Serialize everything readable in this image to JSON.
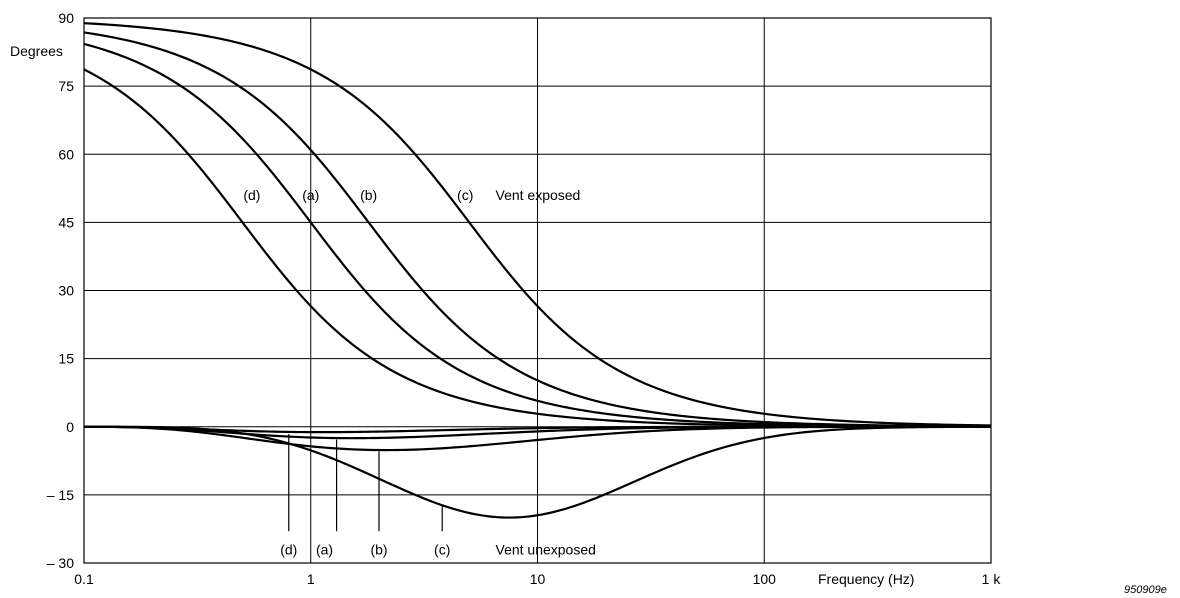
{
  "chart_data": {
    "type": "line",
    "title": "",
    "xlabel": "Frequency (Hz)",
    "ylabel": "Degrees",
    "x_scale": "log",
    "xlim": [
      0.1,
      1000
    ],
    "ylim": [
      -30,
      90
    ],
    "x_ticks": [
      {
        "value": 0.1,
        "label": "0.1"
      },
      {
        "value": 1,
        "label": "1"
      },
      {
        "value": 10,
        "label": "10"
      },
      {
        "value": 100,
        "label": "100"
      },
      {
        "value": 1000,
        "label": "1 k"
      }
    ],
    "y_ticks": [
      {
        "value": 90,
        "label": "90"
      },
      {
        "value": 75,
        "label": "75"
      },
      {
        "value": 60,
        "label": "60"
      },
      {
        "value": 45,
        "label": "45"
      },
      {
        "value": 30,
        "label": "30"
      },
      {
        "value": 15,
        "label": "15"
      },
      {
        "value": 0,
        "label": "0"
      },
      {
        "value": -15,
        "label": "– 15"
      },
      {
        "value": -30,
        "label": "– 30"
      }
    ],
    "grid": true,
    "groups": [
      {
        "label": "Vent exposed",
        "label_at": {
          "x": 10,
          "y": 51
        }
      },
      {
        "label": "Vent unexposed",
        "label_at": {
          "x": 10,
          "y": -27
        }
      }
    ],
    "series": [
      {
        "name": "(d)",
        "group": "Vent exposed",
        "corner_hz": 0.5,
        "x": [
          0.1,
          0.2,
          0.3,
          0.5,
          0.7,
          1,
          2,
          3,
          5,
          10,
          20,
          50,
          100,
          300,
          1000
        ],
        "y": [
          78.7,
          68.2,
          59.0,
          45.0,
          35.5,
          26.6,
          14.0,
          9.5,
          5.7,
          2.9,
          1.4,
          0.6,
          0.3,
          0.1,
          0.0
        ],
        "label_at": {
          "x": 0.55,
          "y": 51
        },
        "label": "(d)"
      },
      {
        "name": "(a)",
        "group": "Vent exposed",
        "corner_hz": 1.0,
        "x": [
          0.1,
          0.2,
          0.3,
          0.5,
          0.7,
          1,
          2,
          3,
          5,
          10,
          20,
          50,
          100,
          300,
          1000
        ],
        "y": [
          84.3,
          78.7,
          73.3,
          63.4,
          55.0,
          45.0,
          26.6,
          18.4,
          11.3,
          5.7,
          2.9,
          1.1,
          0.6,
          0.2,
          0.1
        ],
        "label_at": {
          "x": 1.0,
          "y": 51
        },
        "label": "(a)"
      },
      {
        "name": "(b)",
        "group": "Vent exposed",
        "corner_hz": 1.8,
        "x": [
          0.1,
          0.2,
          0.3,
          0.5,
          0.7,
          1,
          2,
          3,
          5,
          10,
          20,
          50,
          100,
          300,
          1000
        ],
        "y": [
          86.8,
          83.7,
          80.5,
          74.5,
          68.7,
          60.9,
          42.0,
          31.0,
          19.8,
          10.2,
          5.1,
          2.1,
          1.0,
          0.3,
          0.1
        ],
        "label_at": {
          "x": 1.8,
          "y": 51
        },
        "label": "(b)"
      },
      {
        "name": "(c)",
        "group": "Vent exposed",
        "corner_hz": 5.0,
        "x": [
          0.1,
          0.2,
          0.3,
          0.5,
          0.7,
          1,
          2,
          3,
          5,
          10,
          20,
          50,
          100,
          300,
          1000
        ],
        "y": [
          88.9,
          87.7,
          86.6,
          84.3,
          82.0,
          78.7,
          68.2,
          59.0,
          45.0,
          26.6,
          14.0,
          5.7,
          2.9,
          1.0,
          0.3
        ],
        "label_at": {
          "x": 4.8,
          "y": 51
        },
        "label": "(c)"
      },
      {
        "name": "(d)",
        "group": "Vent unexposed",
        "min_hz": 0.8,
        "min_deg": -1.3,
        "x": [
          0.1,
          0.2,
          0.3,
          0.5,
          0.8,
          1.5,
          3,
          6,
          10,
          30,
          100,
          1000
        ],
        "y": [
          0,
          -0.3,
          -0.6,
          -1.0,
          -1.3,
          -1.0,
          -0.6,
          -0.3,
          -0.2,
          0,
          0,
          0
        ],
        "leader": {
          "x": 0.8,
          "y_from": -1.6,
          "y_to": -23
        },
        "label_at": {
          "x": 0.8,
          "y": -27
        },
        "label": "(d)"
      },
      {
        "name": "(a)",
        "group": "Vent unexposed",
        "min_hz": 1.3,
        "min_deg": -2.6,
        "x": [
          0.1,
          0.2,
          0.3,
          0.5,
          0.8,
          1.3,
          2,
          3,
          5,
          10,
          30,
          100,
          1000
        ],
        "y": [
          0,
          -0.4,
          -0.8,
          -1.5,
          -2.2,
          -2.6,
          -2.4,
          -2.0,
          -1.3,
          -0.6,
          -0.2,
          0,
          0
        ],
        "leader": {
          "x": 1.3,
          "y_from": -2.8,
          "y_to": -23
        },
        "label_at": {
          "x": 1.15,
          "y": -27
        },
        "label": "(a)"
      },
      {
        "name": "(b)",
        "group": "Vent unexposed",
        "min_hz": 2.0,
        "min_deg": -5.2,
        "x": [
          0.1,
          0.2,
          0.3,
          0.5,
          0.8,
          1.3,
          2,
          3,
          5,
          10,
          20,
          50,
          100,
          300,
          1000
        ],
        "y": [
          0,
          -0.5,
          -1.0,
          -2.0,
          -3.2,
          -4.5,
          -5.2,
          -4.8,
          -3.8,
          -2.2,
          -1.3,
          -0.5,
          -0.3,
          -0.1,
          0
        ],
        "leader": {
          "x": 2.0,
          "y_from": -5.4,
          "y_to": -23
        },
        "label_at": {
          "x": 2.0,
          "y": -27
        },
        "label": "(b)"
      },
      {
        "name": "(c)",
        "group": "Vent unexposed",
        "min_hz": 7.5,
        "min_deg": -20,
        "x": [
          0.1,
          0.2,
          0.3,
          0.5,
          0.8,
          1.3,
          2,
          3,
          5,
          7.5,
          10,
          20,
          50,
          100,
          200,
          500,
          1000
        ],
        "y": [
          0,
          -0.6,
          -1.3,
          -2.5,
          -4.0,
          -6.5,
          -10.0,
          -13.5,
          -18.0,
          -20.0,
          -19.5,
          -16.0,
          -8.0,
          -3.5,
          -1.5,
          -0.4,
          -0.2
        ],
        "leader": {
          "x": 3.8,
          "y_from": -17.2,
          "y_to": -23
        },
        "label_at": {
          "x": 3.8,
          "y": -27
        },
        "label": "(c)"
      }
    ]
  },
  "figure_id": "950909e"
}
